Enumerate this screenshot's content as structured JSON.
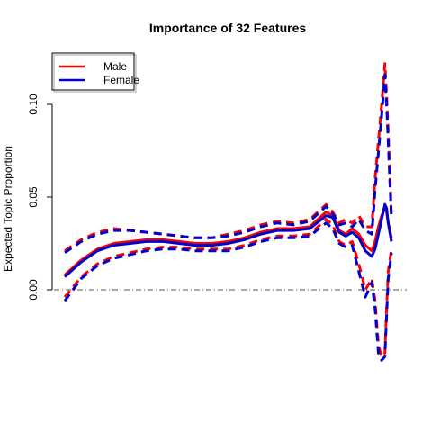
{
  "chart_data": {
    "type": "line",
    "title": "Importance of 32 Features",
    "xlabel": "",
    "ylabel": "Expected Topic Proportion",
    "ylim": [
      -0.038,
      0.124
    ],
    "yticks": [
      {
        "value": 0.0,
        "label": "0.00"
      },
      {
        "value": 0.05,
        "label": "0.05"
      },
      {
        "value": 0.1,
        "label": "0.10"
      }
    ],
    "reference_line": {
      "y": 0.0,
      "style": "dashdot",
      "color": "#555555"
    },
    "legend": {
      "position": "top-left",
      "entries": [
        "Male",
        "Female"
      ]
    },
    "x": [
      0,
      0.05,
      0.1,
      0.15,
      0.2,
      0.25,
      0.3,
      0.35,
      0.4,
      0.45,
      0.5,
      0.55,
      0.6,
      0.65,
      0.7,
      0.75,
      0.8,
      0.82,
      0.84,
      0.86,
      0.88,
      0.9,
      0.92,
      0.94,
      0.95,
      0.96,
      0.97,
      0.98,
      0.985,
      0.99,
      1.0
    ],
    "series": [
      {
        "name": "Male",
        "color": "#ff0000",
        "values": [
          0.008,
          0.016,
          0.022,
          0.025,
          0.026,
          0.027,
          0.027,
          0.026,
          0.025,
          0.025,
          0.026,
          0.028,
          0.031,
          0.033,
          0.033,
          0.034,
          0.042,
          0.04,
          0.032,
          0.03,
          0.033,
          0.03,
          0.024,
          0.021,
          0.026,
          0.034,
          0.04,
          0.044,
          0.042,
          0.036,
          0.028
        ],
        "upper": [
          0.021,
          0.027,
          0.031,
          0.033,
          0.032,
          0.031,
          0.03,
          0.029,
          0.028,
          0.028,
          0.03,
          0.032,
          0.035,
          0.037,
          0.036,
          0.038,
          0.046,
          0.042,
          0.036,
          0.038,
          0.036,
          0.04,
          0.034,
          0.034,
          0.06,
          0.08,
          0.1,
          0.122,
          0.105,
          0.085,
          0.04
        ],
        "lower": [
          -0.004,
          0.007,
          0.014,
          0.018,
          0.02,
          0.022,
          0.023,
          0.023,
          0.022,
          0.022,
          0.022,
          0.024,
          0.027,
          0.029,
          0.029,
          0.03,
          0.038,
          0.035,
          0.026,
          0.024,
          0.026,
          0.014,
          0.0,
          0.006,
          -0.006,
          -0.03,
          -0.036,
          -0.034,
          -0.01,
          0.01,
          0.022
        ]
      },
      {
        "name": "Female",
        "color": "#0000cc",
        "values": [
          0.007,
          0.015,
          0.021,
          0.024,
          0.025,
          0.026,
          0.026,
          0.025,
          0.024,
          0.024,
          0.025,
          0.027,
          0.03,
          0.032,
          0.032,
          0.033,
          0.04,
          0.039,
          0.031,
          0.029,
          0.031,
          0.028,
          0.021,
          0.018,
          0.022,
          0.03,
          0.038,
          0.046,
          0.044,
          0.036,
          0.026
        ],
        "upper": [
          0.02,
          0.026,
          0.03,
          0.032,
          0.032,
          0.031,
          0.03,
          0.029,
          0.028,
          0.028,
          0.029,
          0.031,
          0.034,
          0.036,
          0.035,
          0.037,
          0.045,
          0.041,
          0.035,
          0.036,
          0.034,
          0.038,
          0.032,
          0.03,
          0.054,
          0.074,
          0.094,
          0.116,
          0.1,
          0.08,
          0.038
        ],
        "lower": [
          -0.006,
          0.006,
          0.013,
          0.017,
          0.019,
          0.021,
          0.022,
          0.022,
          0.021,
          0.021,
          0.021,
          0.023,
          0.026,
          0.028,
          0.028,
          0.029,
          0.036,
          0.033,
          0.025,
          0.023,
          0.024,
          0.01,
          -0.004,
          0.004,
          -0.01,
          -0.034,
          -0.038,
          -0.036,
          -0.014,
          0.006,
          0.02
        ]
      }
    ]
  }
}
